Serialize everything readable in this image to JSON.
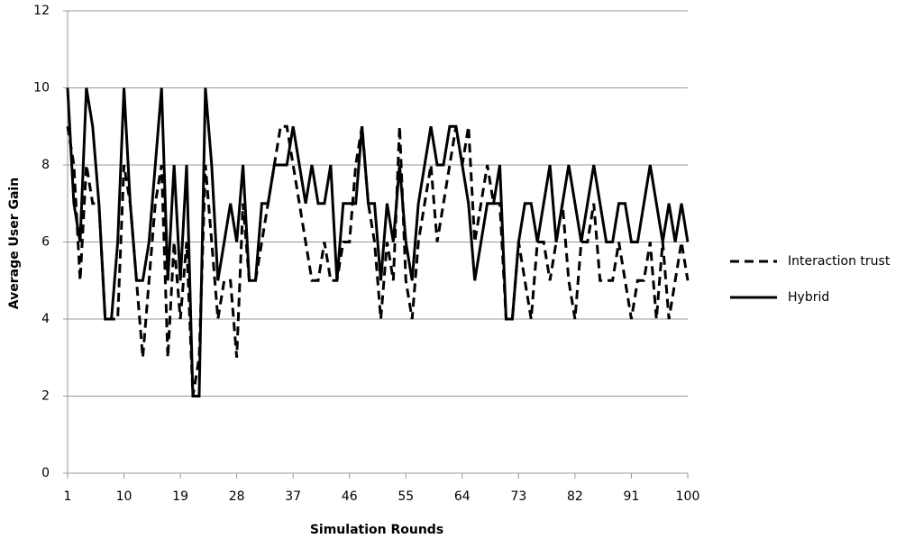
{
  "chart_data": {
    "type": "line",
    "x_label": "Simulation Rounds",
    "y_label": "Average User Gain",
    "x": [
      1,
      2,
      3,
      4,
      5,
      6,
      7,
      8,
      9,
      10,
      11,
      12,
      13,
      14,
      15,
      16,
      17,
      18,
      19,
      20,
      21,
      22,
      23,
      24,
      25,
      26,
      27,
      28,
      29,
      30,
      31,
      32,
      33,
      34,
      35,
      36,
      37,
      38,
      39,
      40,
      41,
      42,
      43,
      44,
      45,
      46,
      47,
      48,
      49,
      50,
      51,
      52,
      53,
      54,
      55,
      56,
      57,
      58,
      59,
      60,
      61,
      62,
      63,
      64,
      65,
      66,
      67,
      68,
      69,
      70,
      71,
      72,
      73,
      74,
      75,
      76,
      77,
      78,
      79,
      80,
      81,
      82,
      83,
      84,
      85,
      86,
      87,
      88,
      89,
      90,
      91,
      92,
      93,
      94,
      95,
      96,
      97,
      98,
      99,
      100
    ],
    "series": [
      {
        "name": "Interaction trust",
        "color": "#000000",
        "line_style": "dashed",
        "values": [
          9,
          8,
          5,
          8,
          7,
          7,
          4,
          4,
          4,
          8,
          7,
          5,
          3,
          5,
          7,
          8,
          3,
          6,
          4,
          6,
          2,
          3,
          8,
          6,
          4,
          5,
          5,
          3,
          7,
          5,
          5,
          6,
          7,
          8,
          9,
          9,
          8,
          7,
          6,
          5,
          5,
          6,
          5,
          5,
          6,
          6,
          8,
          9,
          7,
          6,
          4,
          6,
          5,
          9,
          5,
          4,
          6,
          7,
          8,
          6,
          7,
          8,
          9,
          8,
          9,
          6,
          7,
          8,
          7,
          7,
          4,
          4,
          6,
          5,
          4,
          6,
          6,
          5,
          6,
          7,
          5,
          4,
          6,
          6,
          7,
          5,
          5,
          5,
          6,
          5,
          4,
          5,
          5,
          6,
          4,
          6,
          4,
          5,
          6,
          5
        ]
      },
      {
        "name": "Hybrid",
        "color": "#000000",
        "line_style": "solid",
        "values": [
          10,
          7,
          6,
          10,
          9,
          7,
          4,
          4,
          6,
          10,
          7,
          5,
          5,
          6,
          8,
          10,
          5,
          8,
          5,
          8,
          2,
          2,
          10,
          8,
          5,
          6,
          7,
          6,
          8,
          5,
          5,
          7,
          7,
          8,
          8,
          8,
          9,
          8,
          7,
          8,
          7,
          7,
          8,
          5,
          7,
          7,
          7,
          9,
          7,
          7,
          5,
          7,
          6,
          8,
          6,
          5,
          7,
          8,
          9,
          8,
          8,
          9,
          9,
          8,
          7,
          5,
          6,
          7,
          7,
          8,
          4,
          4,
          6,
          7,
          7,
          6,
          7,
          8,
          6,
          7,
          8,
          7,
          6,
          7,
          8,
          7,
          6,
          6,
          7,
          7,
          6,
          6,
          7,
          8,
          7,
          6,
          7,
          6,
          7,
          6
        ]
      }
    ],
    "xlim": [
      1,
      100
    ],
    "xticks": [
      1,
      10,
      19,
      28,
      37,
      46,
      55,
      64,
      73,
      82,
      91,
      100
    ],
    "ylim": [
      0,
      12
    ],
    "yticks": [
      0,
      2,
      4,
      6,
      8,
      10,
      12
    ],
    "grid": true,
    "legend": "right"
  }
}
